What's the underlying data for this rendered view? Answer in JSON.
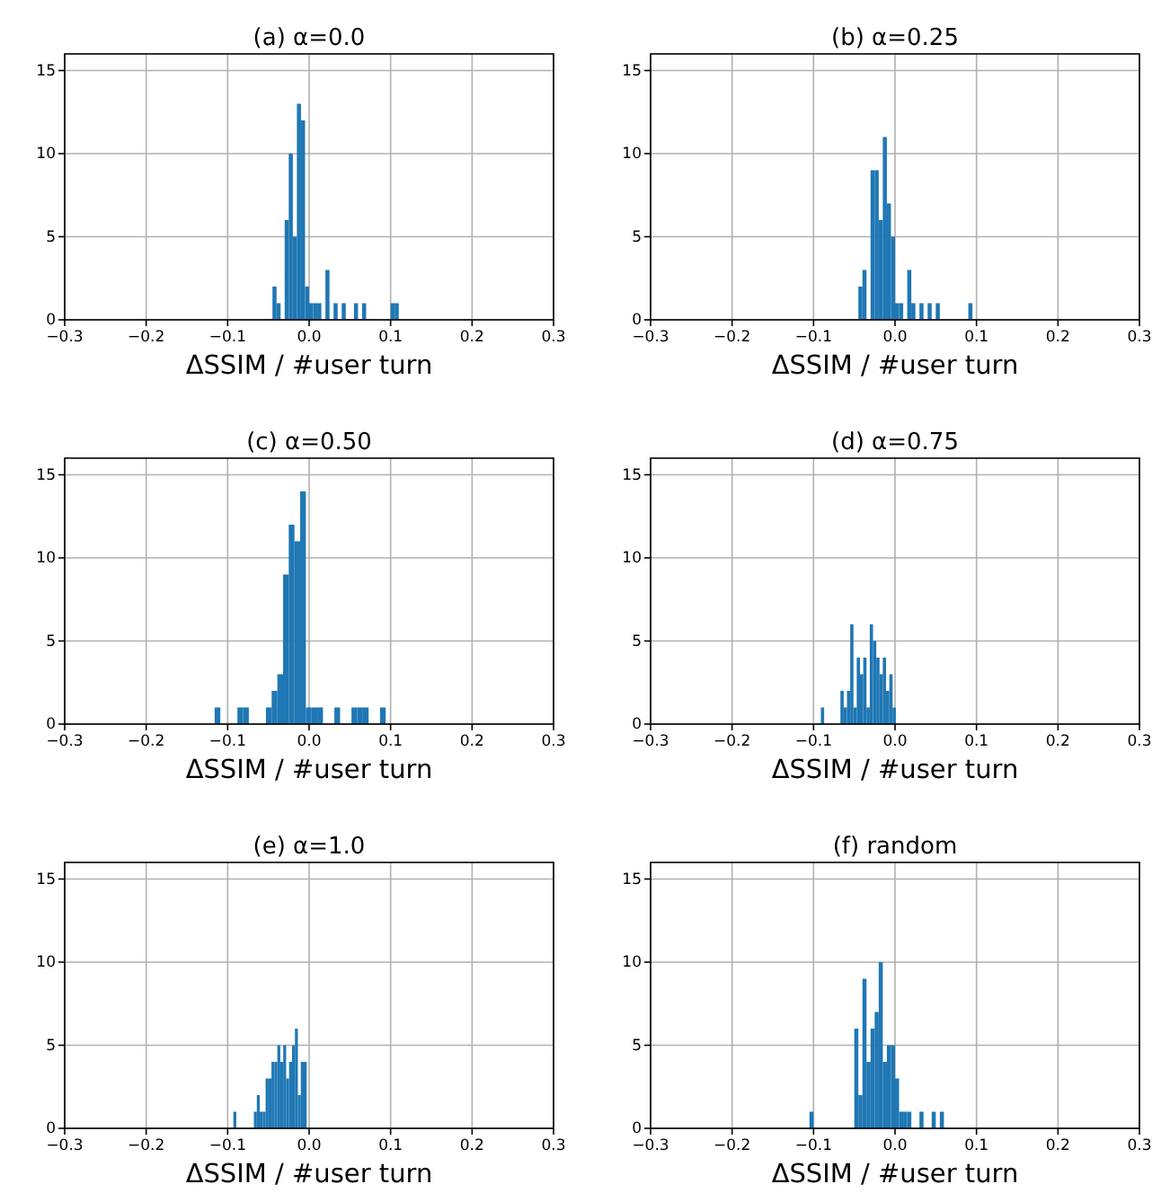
{
  "chart_data": [
    {
      "type": "histogram",
      "title": "(a) α=0.0",
      "xlabel": "ΔSSIM / #user turn",
      "color": "#1f77b4",
      "grid": true,
      "xlim": [
        -0.3,
        0.3
      ],
      "ylim": [
        0,
        16
      ],
      "xticks": [
        {
          "value": -0.3,
          "label": "−0.3"
        },
        {
          "value": -0.2,
          "label": "−0.2"
        },
        {
          "value": -0.1,
          "label": "−0.1"
        },
        {
          "value": 0,
          "label": "0.0"
        },
        0.1,
        0.2,
        0.3
      ],
      "yticks": [
        0,
        5,
        10,
        15
      ],
      "bins": [
        -0.045,
        -0.04,
        -0.035,
        -0.03,
        -0.025,
        -0.02,
        -0.015,
        -0.01,
        -0.005,
        0,
        0.005,
        0.01,
        0.015,
        0.02,
        0.025,
        0.03,
        0.035,
        0.04,
        0.045,
        0.05,
        0.055,
        0.06,
        0.065,
        0.07,
        0.075,
        0.08,
        0.085,
        0.09,
        0.095,
        0.1,
        0.105,
        0.11
      ],
      "values": [
        2,
        1,
        0,
        6,
        10,
        5,
        13,
        12,
        2,
        1,
        1,
        1,
        0,
        3,
        0,
        1,
        0,
        1,
        0,
        0,
        1,
        0,
        1,
        0,
        0,
        0,
        0,
        0,
        0,
        1,
        1
      ]
    },
    {
      "type": "histogram",
      "title": "(b) α=0.25",
      "xlabel": "ΔSSIM / #user turn",
      "color": "#1f77b4",
      "grid": true,
      "xlim": [
        -0.3,
        0.3
      ],
      "ylim": [
        0,
        16
      ],
      "xticks": [
        {
          "value": -0.3,
          "label": "−0.3"
        },
        {
          "value": -0.2,
          "label": "−0.2"
        },
        {
          "value": -0.1,
          "label": "−0.1"
        },
        {
          "value": 0,
          "label": "0.0"
        },
        0.1,
        0.2,
        0.3
      ],
      "yticks": [
        0,
        5,
        10,
        15
      ],
      "bins": [
        -0.045,
        -0.04,
        -0.035,
        -0.03,
        -0.025,
        -0.02,
        -0.015,
        -0.01,
        -0.005,
        0,
        0.005,
        0.01,
        0.015,
        0.02,
        0.025,
        0.03,
        0.035,
        0.04,
        0.045,
        0.05,
        0.055,
        0.06,
        0.065,
        0.07,
        0.075,
        0.08,
        0.085,
        0.09,
        0.095
      ],
      "values": [
        2,
        3,
        0,
        9,
        9,
        6,
        11,
        7,
        5,
        1,
        1,
        0,
        3,
        1,
        0,
        1,
        0,
        1,
        0,
        1,
        0,
        0,
        0,
        0,
        0,
        0,
        0,
        1
      ]
    },
    {
      "type": "histogram",
      "title": "(c) α=0.50",
      "xlabel": "ΔSSIM / #user turn",
      "color": "#1f77b4",
      "grid": true,
      "xlim": [
        -0.3,
        0.3
      ],
      "ylim": [
        0,
        16
      ],
      "xticks": [
        {
          "value": -0.3,
          "label": "−0.3"
        },
        {
          "value": -0.2,
          "label": "−0.2"
        },
        {
          "value": -0.1,
          "label": "−0.1"
        },
        {
          "value": 0,
          "label": "0.0"
        },
        0.1,
        0.2,
        0.3
      ],
      "yticks": [
        0,
        5,
        10,
        15
      ],
      "bins": [
        -0.116,
        -0.109,
        -0.102,
        -0.095,
        -0.088,
        -0.081,
        -0.074,
        -0.067,
        -0.06,
        -0.053,
        -0.046,
        -0.039,
        -0.032,
        -0.025,
        -0.018,
        -0.011,
        -0.004,
        0.003,
        0.01,
        0.017,
        0.024,
        0.031,
        0.038,
        0.045,
        0.052,
        0.059,
        0.066,
        0.073,
        0.08,
        0.087,
        0.094
      ],
      "values": [
        1,
        0,
        0,
        0,
        1,
        1,
        0,
        0,
        0,
        1,
        2,
        3,
        9,
        12,
        11,
        14,
        1,
        1,
        1,
        0,
        0,
        1,
        0,
        0,
        1,
        1,
        1,
        0,
        0,
        1
      ]
    },
    {
      "type": "histogram",
      "title": "(d) α=0.75",
      "xlabel": "ΔSSIM / #user turn",
      "color": "#1f77b4",
      "grid": true,
      "xlim": [
        -0.3,
        0.3
      ],
      "ylim": [
        0,
        16
      ],
      "xticks": [
        {
          "value": -0.3,
          "label": "−0.3"
        },
        {
          "value": -0.2,
          "label": "−0.2"
        },
        {
          "value": -0.1,
          "label": "−0.1"
        },
        {
          "value": 0,
          "label": "0.0"
        },
        0.1,
        0.2,
        0.3
      ],
      "yticks": [
        0,
        5,
        10,
        15
      ],
      "bins": [
        -0.091,
        -0.087,
        -0.083,
        -0.079,
        -0.075,
        -0.071,
        -0.067,
        -0.063,
        -0.059,
        -0.055,
        -0.051,
        -0.047,
        -0.043,
        -0.039,
        -0.035,
        -0.031,
        -0.027,
        -0.023,
        -0.019,
        -0.015,
        -0.011,
        -0.007,
        -0.003,
        0.001
      ],
      "values": [
        1,
        0,
        0,
        0,
        0,
        0,
        2,
        1,
        2,
        6,
        1,
        4,
        3,
        4,
        1,
        6,
        5,
        4,
        3,
        4,
        2,
        3,
        1
      ]
    },
    {
      "type": "histogram",
      "title": "(e) α=1.0",
      "xlabel": "ΔSSIM / #user turn",
      "color": "#1f77b4",
      "grid": true,
      "xlim": [
        -0.3,
        0.3
      ],
      "ylim": [
        0,
        16
      ],
      "xticks": [
        {
          "value": -0.3,
          "label": "−0.3"
        },
        {
          "value": -0.2,
          "label": "−0.2"
        },
        {
          "value": -0.1,
          "label": "−0.1"
        },
        {
          "value": 0,
          "label": "0.0"
        },
        0.1,
        0.2,
        0.3
      ],
      "yticks": [
        0,
        5,
        10,
        15
      ],
      "bins": [
        -0.093,
        -0.0894,
        -0.0858,
        -0.0822,
        -0.0786,
        -0.075,
        -0.0714,
        -0.0678,
        -0.0642,
        -0.0606,
        -0.057,
        -0.0534,
        -0.0498,
        -0.0462,
        -0.0426,
        -0.039,
        -0.0354,
        -0.0318,
        -0.0282,
        -0.0246,
        -0.021,
        -0.0174,
        -0.0138,
        -0.0102,
        -0.0066,
        -0.003
      ],
      "values": [
        1,
        0,
        0,
        0,
        0,
        0,
        0,
        1,
        2,
        1,
        1,
        3,
        3,
        4,
        4,
        5,
        4,
        5,
        3,
        4,
        5,
        6,
        2,
        4,
        4
      ]
    },
    {
      "type": "histogram",
      "title": "(f) random",
      "xlabel": "ΔSSIM / #user turn",
      "color": "#1f77b4",
      "grid": true,
      "xlim": [
        -0.3,
        0.3
      ],
      "ylim": [
        0,
        16
      ],
      "xticks": [
        {
          "value": -0.3,
          "label": "−0.3"
        },
        {
          "value": -0.2,
          "label": "−0.2"
        },
        {
          "value": -0.1,
          "label": "−0.1"
        },
        {
          "value": 0,
          "label": "0.0"
        },
        0.1,
        0.2,
        0.3
      ],
      "yticks": [
        0,
        5,
        10,
        15
      ],
      "bins": [
        -0.105,
        -0.1,
        -0.095,
        -0.09,
        -0.085,
        -0.08,
        -0.075,
        -0.07,
        -0.065,
        -0.06,
        -0.055,
        -0.05,
        -0.045,
        -0.04,
        -0.035,
        -0.03,
        -0.025,
        -0.02,
        -0.015,
        -0.01,
        -0.005,
        0,
        0.005,
        0.01,
        0.015,
        0.02,
        0.025,
        0.03,
        0.035,
        0.04,
        0.045,
        0.05,
        0.055,
        0.06
      ],
      "values": [
        1,
        0,
        0,
        0,
        0,
        0,
        0,
        0,
        0,
        0,
        0,
        6,
        2,
        9,
        4,
        6,
        7,
        10,
        4,
        5,
        5,
        3,
        1,
        1,
        1,
        0,
        0,
        1,
        0,
        0,
        1,
        0,
        1
      ]
    }
  ]
}
